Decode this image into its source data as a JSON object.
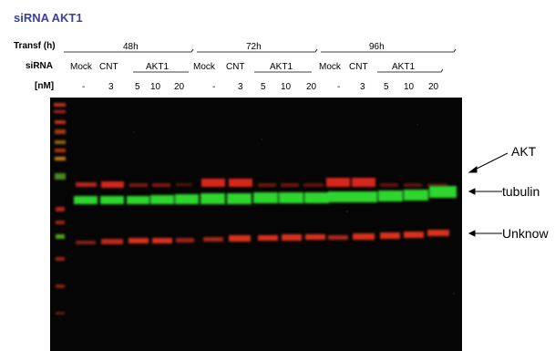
{
  "title": "siRNA AKT1",
  "row_labels": {
    "transf": "Transf (h)",
    "sirna": "siRNA",
    "nm": "[nM]"
  },
  "timepoints": [
    "48h",
    "72h",
    "96h"
  ],
  "sirna_row": [
    "Mock",
    "CNT",
    "AKT1",
    "Mock",
    "CNT",
    "AKT1",
    "Mock",
    "CNT",
    "AKT1"
  ],
  "nm_row": [
    "-",
    "3",
    "5",
    "10",
    "20",
    "-",
    "3",
    "5",
    "10",
    "20",
    "-",
    "3",
    "5",
    "10",
    "20"
  ],
  "band_labels": {
    "akt": "AKT",
    "tubulin": "tubulin",
    "unknown": "Unknow"
  },
  "colors": {
    "title": "#3a3fa0",
    "akt_band": "#e0281c",
    "tubulin_band": "#2fd62f",
    "unknown_band": "#d9301f",
    "blot_bg": "#050505"
  }
}
